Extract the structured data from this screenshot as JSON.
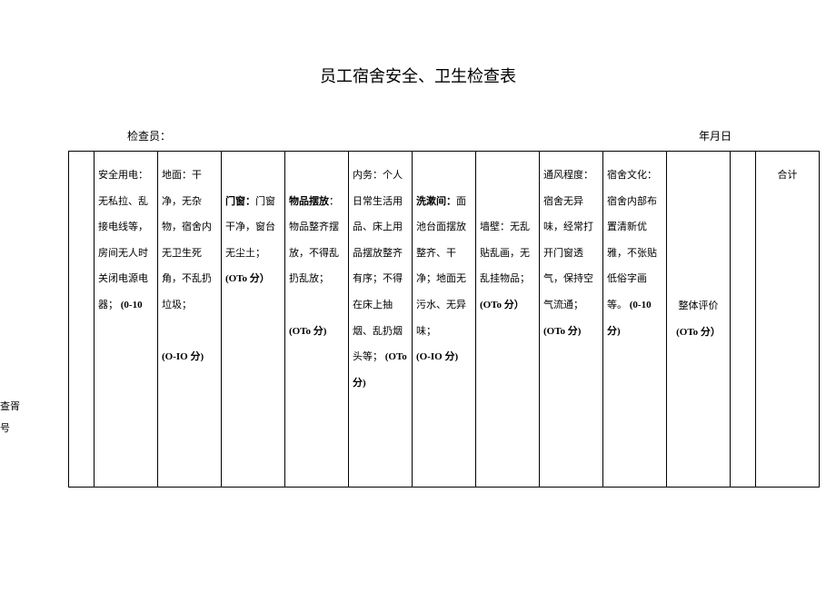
{
  "title": "员工宿舍安全、卫生检查表",
  "header": {
    "inspector": "检查员：",
    "date": "年月日"
  },
  "side_label": {
    "line1": "查胥",
    "line2": "号"
  },
  "columns": {
    "col1": {
      "text": "安全用电：无私拉、乱接电线等，房间无人时关闭电源电器；",
      "score": "(0-10"
    },
    "col2": {
      "text": "地面：干净，无杂物，宿舍内无卫生死角，不乱扔垃圾；",
      "score": "(O-IO 分)"
    },
    "col3": {
      "label": "门窗：",
      "text": "门窗干净，窗台无尘土；",
      "score": "(OTo 分）"
    },
    "col4": {
      "label": "物品摆放",
      "text": "：物品整齐摆放，不得乱扔乱放；",
      "score": "(OTo 分)"
    },
    "col5": {
      "text": "内务：个人日常生活用品、床上用品摆放整齐有序；不得在床上抽烟、乱扔烟头等；",
      "score": "(OTo 分)"
    },
    "col6": {
      "label": "洗漱间：",
      "text": "面池台面摆放整齐、干净；地面无污水、无异味；",
      "score": "(O-IO 分)"
    },
    "col7": {
      "text": "墙壁：无乱贴乱画，无乱挂物品；",
      "score": "(OTo 分）"
    },
    "col8": {
      "text": "通风程度：宿舍无异味，经常打开门窗透气，保持空气流通；",
      "score": "(OTo 分)"
    },
    "col9": {
      "text": "宿舍文化：宿舍内部布置清新优雅，不张贴低俗字画等。",
      "score": "(0-10 分)"
    },
    "col10": {
      "text": "整体评价",
      "score": "(OTo 分）"
    },
    "col11": {
      "text": "合计"
    }
  }
}
